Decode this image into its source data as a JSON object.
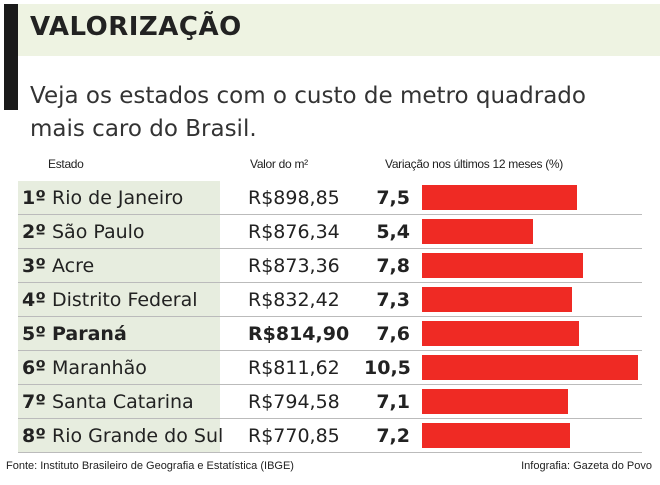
{
  "header": {
    "title": "VALORIZAÇÃO",
    "subtitle": "Veja os estados com o custo de metro quadrado mais caro do Brasil."
  },
  "table": {
    "columns": [
      "Estado",
      "Valor do m²",
      "Variação nos últimos 12 meses (%)"
    ],
    "rows": [
      {
        "rank": "1º",
        "state": "Rio de Janeiro",
        "price": "R$898,85",
        "variation": {
          "value": 7.5,
          "label": "7,5"
        }
      },
      {
        "rank": "2º",
        "state": "São Paulo",
        "price": "R$876,34",
        "variation": {
          "value": 5.4,
          "label": "5,4"
        }
      },
      {
        "rank": "3º",
        "state": "Acre",
        "price": "R$873,36",
        "variation": {
          "value": 7.8,
          "label": "7,8"
        }
      },
      {
        "rank": "4º",
        "state": "Distrito Federal",
        "price": "R$832,42",
        "variation": {
          "value": 7.3,
          "label": "7,3"
        }
      },
      {
        "rank": "5º",
        "state": "Paraná",
        "price": "R$814,90",
        "variation": {
          "value": 7.6,
          "label": "7,6"
        },
        "highlighted": true
      },
      {
        "rank": "6º",
        "state": "Maranhão",
        "price": "R$811,62",
        "variation": {
          "value": 10.5,
          "label": "10,5"
        }
      },
      {
        "rank": "7º",
        "state": "Santa Catarina",
        "price": "R$794,58",
        "variation": {
          "value": 7.1,
          "label": "7,1"
        }
      },
      {
        "rank": "8º",
        "state": "Rio Grande do Sul",
        "price": "R$770,85",
        "variation": {
          "value": 7.2,
          "label": "7,2"
        }
      }
    ]
  },
  "footer": {
    "source": "Fonte: Instituto Brasileiro de Geografia e Estatística (IBGE)",
    "credit": "Infografia: Gazeta do Povo"
  }
}
